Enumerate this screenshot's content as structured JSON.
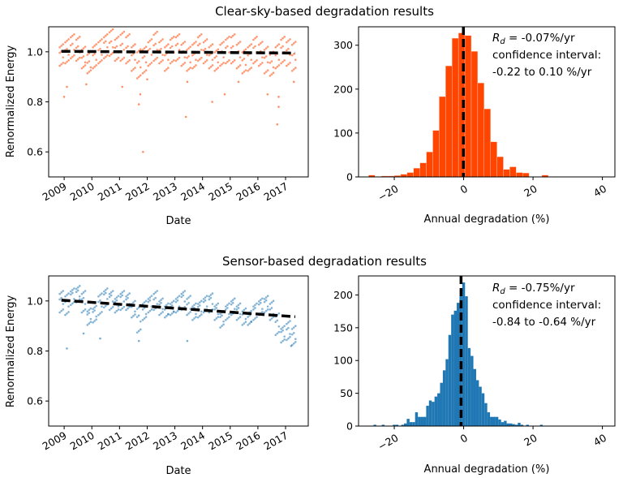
{
  "chart_data": [
    {
      "type": "scatter",
      "panel": "top-left",
      "title": "Clear-sky-based degradation results",
      "xlabel": "Date",
      "ylabel": "Renormalized Energy",
      "xlim": [
        2008.44,
        2017.82
      ],
      "ylim": [
        0.5,
        1.1
      ],
      "xticks": [
        2009,
        2010,
        2011,
        2012,
        2013,
        2014,
        2015,
        2016,
        2017
      ],
      "xtick_labels": [
        "2009",
        "2010",
        "2011",
        "2012",
        "2013",
        "2014",
        "2015",
        "2016",
        "2017"
      ],
      "yticks": [
        0.6,
        0.8,
        1.0
      ],
      "ytick_labels": [
        "0.6",
        "0.8",
        "1.0"
      ],
      "point_color": "#ff4500",
      "trend_color": "#000000",
      "trend": {
        "x": [
          2008.9,
          2017.35
        ],
        "y": [
          1.002,
          0.995
        ]
      },
      "samples": [
        {
          "x": 2008.9,
          "y": [
            1.03,
            0.99,
            0.95
          ]
        },
        {
          "x": 2009.1,
          "y": [
            1.05,
            1.0,
            0.96
          ]
        },
        {
          "x": 2009.3,
          "y": [
            1.07,
            1.02,
            0.98
          ]
        },
        {
          "x": 2009.5,
          "y": [
            1.06,
            1.01,
            0.97
          ]
        },
        {
          "x": 2009.7,
          "y": [
            1.02,
            0.97,
            0.94
          ]
        },
        {
          "x": 2009.9,
          "y": [
            1.0,
            0.95,
            0.92
          ]
        },
        {
          "x": 2010.1,
          "y": [
            1.03,
            0.98,
            0.94
          ]
        },
        {
          "x": 2010.3,
          "y": [
            1.05,
            1.0,
            0.96
          ]
        },
        {
          "x": 2010.5,
          "y": [
            1.07,
            1.03,
            0.98
          ]
        },
        {
          "x": 2010.7,
          "y": [
            1.09,
            1.03,
            0.99
          ]
        },
        {
          "x": 2010.9,
          "y": [
            1.06,
            1.01,
            0.97
          ]
        },
        {
          "x": 2011.1,
          "y": [
            1.08,
            1.02,
            0.97
          ]
        },
        {
          "x": 2011.3,
          "y": [
            1.07,
            1.01,
            0.96
          ]
        },
        {
          "x": 2011.5,
          "y": [
            1.03,
            0.98,
            0.93
          ]
        },
        {
          "x": 2011.7,
          "y": [
            1.01,
            0.95,
            0.9
          ]
        },
        {
          "x": 2011.9,
          "y": [
            1.02,
            0.97,
            0.92
          ]
        },
        {
          "x": 2012.1,
          "y": [
            1.05,
            1.0,
            0.95
          ]
        },
        {
          "x": 2012.3,
          "y": [
            1.08,
            1.02,
            0.97
          ]
        },
        {
          "x": 2012.5,
          "y": [
            1.05,
            1.0,
            0.96
          ]
        },
        {
          "x": 2012.7,
          "y": [
            1.03,
            0.98,
            0.93
          ]
        },
        {
          "x": 2012.9,
          "y": [
            1.06,
            1.01,
            0.96
          ]
        },
        {
          "x": 2013.1,
          "y": [
            1.07,
            1.02,
            0.97
          ]
        },
        {
          "x": 2013.3,
          "y": [
            1.04,
            0.99,
            0.95
          ]
        },
        {
          "x": 2013.5,
          "y": [
            1.02,
            0.97,
            0.93
          ]
        },
        {
          "x": 2013.7,
          "y": [
            1.04,
            0.98,
            0.94
          ]
        },
        {
          "x": 2013.9,
          "y": [
            1.07,
            1.02,
            0.97
          ]
        },
        {
          "x": 2014.1,
          "y": [
            1.05,
            1.0,
            0.96
          ]
        },
        {
          "x": 2014.3,
          "y": [
            1.03,
            0.98,
            0.94
          ]
        },
        {
          "x": 2014.5,
          "y": [
            1.01,
            0.97,
            0.93
          ]
        },
        {
          "x": 2014.7,
          "y": [
            1.04,
            0.99,
            0.95
          ]
        },
        {
          "x": 2014.9,
          "y": [
            1.06,
            1.01,
            0.96
          ]
        },
        {
          "x": 2015.1,
          "y": [
            1.07,
            1.01,
            0.96
          ]
        },
        {
          "x": 2015.3,
          "y": [
            1.04,
            0.99,
            0.94
          ]
        },
        {
          "x": 2015.5,
          "y": [
            1.01,
            0.96,
            0.92
          ]
        },
        {
          "x": 2015.7,
          "y": [
            1.03,
            0.98,
            0.93
          ]
        },
        {
          "x": 2015.9,
          "y": [
            1.06,
            1.01,
            0.96
          ]
        },
        {
          "x": 2016.1,
          "y": [
            1.04,
            0.99,
            0.95
          ]
        },
        {
          "x": 2016.3,
          "y": [
            1.02,
            0.97,
            0.92
          ]
        },
        {
          "x": 2016.5,
          "y": [
            1.0,
            0.95,
            0.91
          ]
        },
        {
          "x": 2016.7,
          "y": [
            1.03,
            0.98,
            0.94
          ]
        },
        {
          "x": 2016.9,
          "y": [
            1.06,
            1.01,
            0.96
          ]
        },
        {
          "x": 2017.1,
          "y": [
            1.05,
            1.0,
            0.95
          ]
        },
        {
          "x": 2017.3,
          "y": [
            1.04,
            0.98,
            0.93
          ]
        }
      ],
      "outliers": [
        [
          2009.0,
          0.82
        ],
        [
          2009.1,
          0.86
        ],
        [
          2009.8,
          0.87
        ],
        [
          2011.1,
          0.86
        ],
        [
          2011.7,
          0.79
        ],
        [
          2011.75,
          0.83
        ],
        [
          2011.85,
          0.6
        ],
        [
          2012.0,
          0.89
        ],
        [
          2013.4,
          0.74
        ],
        [
          2013.45,
          0.88
        ],
        [
          2014.35,
          0.8
        ],
        [
          2014.8,
          0.83
        ],
        [
          2015.3,
          0.88
        ],
        [
          2016.35,
          0.83
        ],
        [
          2016.7,
          0.71
        ],
        [
          2016.75,
          0.78
        ],
        [
          2016.75,
          0.82
        ],
        [
          2017.3,
          0.88
        ]
      ]
    },
    {
      "type": "bar",
      "subtype": "histogram",
      "panel": "top-right",
      "xlabel": "Annual degradation (%)",
      "xlim": [
        -30.3,
        43.6
      ],
      "ylim": [
        0,
        342
      ],
      "xticks": [
        -20,
        0,
        20,
        40
      ],
      "xtick_labels": [
        "−20",
        "0",
        "20",
        "40"
      ],
      "yticks": [
        0,
        100,
        200,
        300
      ],
      "ytick_labels": [
        "0",
        "100",
        "200",
        "300"
      ],
      "bar_color": "#ff4500",
      "bin_start": -27.4,
      "bin_width": 1.85,
      "counts": [
        4,
        0,
        2,
        2,
        3,
        6,
        10,
        20,
        32,
        57,
        106,
        183,
        253,
        316,
        328,
        322,
        286,
        214,
        155,
        80,
        46,
        17,
        23,
        10,
        9,
        0,
        0,
        4
      ],
      "median_line": -0.07,
      "annotation": {
        "rd_symbol": "R",
        "rd_sub": "d",
        "rd_value": " = -0.07%/yr",
        "line2": "confidence interval:",
        "line3": "-0.22 to 0.10 %/yr"
      }
    },
    {
      "type": "scatter",
      "panel": "bottom-left",
      "title": "Sensor-based degradation results",
      "xlabel": "Date",
      "ylabel": "Renormalized Energy",
      "xlim": [
        2008.44,
        2017.82
      ],
      "ylim": [
        0.5,
        1.1
      ],
      "xticks": [
        2009,
        2010,
        2011,
        2012,
        2013,
        2014,
        2015,
        2016,
        2017
      ],
      "xtick_labels": [
        "2009",
        "2010",
        "2011",
        "2012",
        "2013",
        "2014",
        "2015",
        "2016",
        "2017"
      ],
      "yticks": [
        0.6,
        0.8,
        1.0
      ],
      "ytick_labels": [
        "0.6",
        "0.8",
        "1.0"
      ],
      "point_color": "#1f77b4",
      "trend_color": "#000000",
      "trend": {
        "x": [
          2008.9,
          2017.35
        ],
        "y": [
          1.003,
          0.937
        ]
      },
      "samples": [
        {
          "x": 2008.9,
          "y": [
            1.04,
            1.0,
            0.96
          ]
        },
        {
          "x": 2009.1,
          "y": [
            1.03,
            0.99,
            0.95
          ]
        },
        {
          "x": 2009.3,
          "y": [
            1.05,
            1.02,
            0.99
          ]
        },
        {
          "x": 2009.5,
          "y": [
            1.06,
            1.03,
            1.0
          ]
        },
        {
          "x": 2009.7,
          "y": [
            1.04,
            1.0,
            0.96
          ]
        },
        {
          "x": 2009.9,
          "y": [
            0.97,
            0.94,
            0.91
          ]
        },
        {
          "x": 2010.1,
          "y": [
            0.98,
            0.95,
            0.92
          ]
        },
        {
          "x": 2010.3,
          "y": [
            1.03,
            0.99,
            0.95
          ]
        },
        {
          "x": 2010.5,
          "y": [
            1.05,
            1.02,
            0.98
          ]
        },
        {
          "x": 2010.7,
          "y": [
            1.04,
            1.01,
            0.97
          ]
        },
        {
          "x": 2010.9,
          "y": [
            1.02,
            0.99,
            0.96
          ]
        },
        {
          "x": 2011.1,
          "y": [
            1.04,
            1.01,
            0.97
          ]
        },
        {
          "x": 2011.3,
          "y": [
            1.03,
            1.0,
            0.97
          ]
        },
        {
          "x": 2011.5,
          "y": [
            1.0,
            0.97,
            0.94
          ]
        },
        {
          "x": 2011.7,
          "y": [
            0.98,
            0.93,
            0.88
          ]
        },
        {
          "x": 2011.9,
          "y": [
            1.0,
            0.96,
            0.93
          ]
        },
        {
          "x": 2012.1,
          "y": [
            1.02,
            0.99,
            0.96
          ]
        },
        {
          "x": 2012.3,
          "y": [
            1.04,
            1.0,
            0.97
          ]
        },
        {
          "x": 2012.5,
          "y": [
            1.01,
            0.98,
            0.95
          ]
        },
        {
          "x": 2012.7,
          "y": [
            0.99,
            0.96,
            0.94
          ]
        },
        {
          "x": 2012.9,
          "y": [
            1.0,
            0.97,
            0.95
          ]
        },
        {
          "x": 2013.1,
          "y": [
            1.02,
            0.99,
            0.96
          ]
        },
        {
          "x": 2013.3,
          "y": [
            1.04,
            1.01,
            0.97
          ]
        },
        {
          "x": 2013.5,
          "y": [
            1.02,
            0.98,
            0.95
          ]
        },
        {
          "x": 2013.7,
          "y": [
            0.99,
            0.96,
            0.93
          ]
        },
        {
          "x": 2013.9,
          "y": [
            1.0,
            0.97,
            0.94
          ]
        },
        {
          "x": 2014.1,
          "y": [
            1.02,
            0.99,
            0.96
          ]
        },
        {
          "x": 2014.3,
          "y": [
            1.03,
            1.0,
            0.96
          ]
        },
        {
          "x": 2014.5,
          "y": [
            0.99,
            0.96,
            0.93
          ]
        },
        {
          "x": 2014.7,
          "y": [
            0.96,
            0.93,
            0.9
          ]
        },
        {
          "x": 2014.9,
          "y": [
            0.99,
            0.96,
            0.93
          ]
        },
        {
          "x": 2015.1,
          "y": [
            1.01,
            0.98,
            0.95
          ]
        },
        {
          "x": 2015.3,
          "y": [
            0.99,
            0.96,
            0.93
          ]
        },
        {
          "x": 2015.5,
          "y": [
            0.97,
            0.94,
            0.91
          ]
        },
        {
          "x": 2015.7,
          "y": [
            0.96,
            0.93,
            0.91
          ]
        },
        {
          "x": 2015.9,
          "y": [
            0.99,
            0.96,
            0.93
          ]
        },
        {
          "x": 2016.1,
          "y": [
            1.01,
            0.98,
            0.95
          ]
        },
        {
          "x": 2016.3,
          "y": [
            1.02,
            0.99,
            0.96
          ]
        },
        {
          "x": 2016.5,
          "y": [
            1.0,
            0.96,
            0.93
          ]
        },
        {
          "x": 2016.7,
          "y": [
            0.95,
            0.91,
            0.87
          ]
        },
        {
          "x": 2016.9,
          "y": [
            0.9,
            0.87,
            0.84
          ]
        },
        {
          "x": 2017.1,
          "y": [
            0.92,
            0.88,
            0.85
          ]
        },
        {
          "x": 2017.3,
          "y": [
            0.9,
            0.86,
            0.83
          ]
        }
      ],
      "outliers": [
        [
          2009.1,
          0.81
        ],
        [
          2010.3,
          0.85
        ],
        [
          2011.7,
          0.84
        ],
        [
          2013.45,
          0.84
        ],
        [
          2009.7,
          0.87
        ],
        [
          2017.2,
          0.82
        ]
      ]
    },
    {
      "type": "bar",
      "subtype": "histogram",
      "panel": "bottom-right",
      "xlabel": "Annual degradation (%)",
      "xlim": [
        -30.3,
        43.6
      ],
      "ylim": [
        0,
        229
      ],
      "xticks": [
        -20,
        0,
        20,
        40
      ],
      "xtick_labels": [
        "−20",
        "0",
        "20",
        "40"
      ],
      "yticks": [
        0,
        50,
        100,
        150,
        200
      ],
      "ytick_labels": [
        "0",
        "50",
        "100",
        "150",
        "200"
      ],
      "bar_color": "#1f77b4",
      "bin_start": -26.0,
      "bin_width": 0.8,
      "counts": [
        2,
        0,
        0,
        2,
        0,
        0,
        0,
        2,
        2,
        0,
        2,
        4,
        11,
        6,
        6,
        21,
        14,
        14,
        14,
        31,
        39,
        37,
        45,
        50,
        66,
        85,
        102,
        139,
        170,
        176,
        188,
        198,
        219,
        198,
        119,
        107,
        87,
        70,
        60,
        50,
        35,
        21,
        14,
        14,
        14,
        10,
        6,
        8,
        4,
        4,
        3,
        2,
        5,
        2,
        0,
        2,
        0,
        0,
        0,
        0,
        2
      ],
      "median_line": -0.75,
      "annotation": {
        "rd_symbol": "R",
        "rd_sub": "d",
        "rd_value": " = -0.75%/yr",
        "line2": "confidence interval:",
        "line3": "-0.84 to -0.64 %/yr"
      }
    }
  ]
}
